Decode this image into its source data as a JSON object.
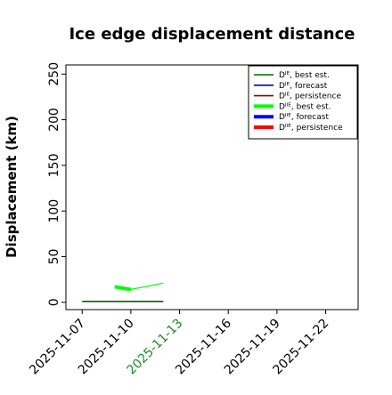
{
  "chart_data": {
    "type": "line",
    "title": "Ice edge displacement distance",
    "xlabel": "",
    "ylabel": "Displacement (km)",
    "x_ticks": [
      "2025-11-07",
      "2025-11-10",
      "2025-11-13",
      "2025-11-16",
      "2025-11-19",
      "2025-11-22"
    ],
    "highlighted_tick": "2025-11-13",
    "highlight_color": "#228b22",
    "xlim": [
      "2025-11-06",
      "2025-11-24"
    ],
    "y_ticks": [
      0,
      50,
      100,
      150,
      200,
      250
    ],
    "ylim": [
      -8,
      260
    ],
    "grid": false,
    "legend_position": "top-right",
    "series": [
      {
        "name": "Dᴵᴱ, best est.",
        "color": "#006400",
        "width": "thin",
        "x": [
          "2025-11-07",
          "2025-11-12"
        ],
        "y": [
          1,
          1
        ]
      },
      {
        "name": "Dᴵᴱ, forecast",
        "color": "#0000cd",
        "width": "thin",
        "x": [],
        "y": []
      },
      {
        "name": "Dᴵᴱ, persistence",
        "color": "#8b0000",
        "width": "thin",
        "x": [],
        "y": []
      },
      {
        "name": "Dᴵᴵᴱ, best est.",
        "color": "#00ff00",
        "width": "thick",
        "x": [
          "2025-11-09",
          "2025-11-10",
          "2025-11-12"
        ],
        "y": [
          17,
          14,
          21
        ]
      },
      {
        "name": "Dᴵᴵᴱ, forecast",
        "color": "#0000ff",
        "width": "thick",
        "x": [],
        "y": []
      },
      {
        "name": "Dᴵᴵᴱ, persistence",
        "color": "#ff0000",
        "width": "thick",
        "x": [],
        "y": []
      }
    ]
  }
}
